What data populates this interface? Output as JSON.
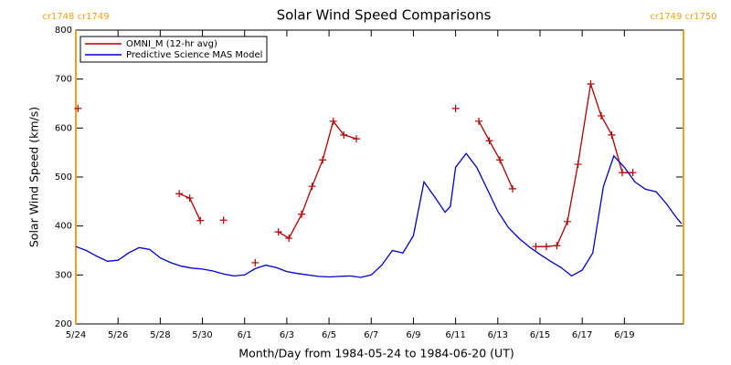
{
  "chart_data": {
    "type": "line",
    "title": "Solar Wind Speed Comparisons",
    "xlabel": "Month/Day from 1984-05-24 to 1984-06-20 (UT)",
    "ylabel": "Solar Wind Speed (km/s)",
    "xlim": [
      0,
      28.8
    ],
    "xticks": [
      {
        "value": 0,
        "label": "5/24"
      },
      {
        "value": 2,
        "label": "5/26"
      },
      {
        "value": 4,
        "label": "5/28"
      },
      {
        "value": 6,
        "label": "5/30"
      },
      {
        "value": 8,
        "label": "6/1"
      },
      {
        "value": 10,
        "label": "6/3"
      },
      {
        "value": 12,
        "label": "6/5"
      },
      {
        "value": 14,
        "label": "6/7"
      },
      {
        "value": 16,
        "label": "6/9"
      },
      {
        "value": 18,
        "label": "6/11"
      },
      {
        "value": 20,
        "label": "6/13"
      },
      {
        "value": 22,
        "label": "6/15"
      },
      {
        "value": 24,
        "label": "6/17"
      },
      {
        "value": 26,
        "label": "6/19"
      }
    ],
    "ylim": [
      200,
      800
    ],
    "yticks": [
      200,
      300,
      400,
      500,
      600,
      700,
      800
    ],
    "legend": "upper left",
    "carrington_boundaries": [
      {
        "x": 0,
        "label": "cr1748 cr1749",
        "color": "#f0a020"
      },
      {
        "x": 28.8,
        "label": "cr1749 cr1750",
        "color": "#f0a020"
      }
    ],
    "series": [
      {
        "name": "OMNI_M (12-hr avg)",
        "color": "#b00000",
        "marker": "plus",
        "x": [
          0.1,
          null,
          4.9,
          5.4,
          5.9,
          null,
          7.0,
          null,
          8.5,
          null,
          9.6,
          10.1,
          10.7,
          11.2,
          11.7,
          12.2,
          12.7,
          13.3,
          null,
          18.0,
          null,
          19.1,
          19.6,
          20.1,
          20.7,
          null,
          21.8,
          22.3,
          22.8,
          23.3,
          23.8,
          24.4,
          24.9,
          25.4,
          25.9,
          26.4
        ],
        "values": [
          640,
          null,
          466,
          457,
          411,
          null,
          412,
          null,
          325,
          null,
          388,
          375,
          424,
          481,
          535,
          614,
          586,
          578,
          null,
          640,
          null,
          614,
          574,
          535,
          476,
          null,
          358,
          358,
          360,
          409,
          526,
          690,
          625,
          586,
          509,
          509
        ]
      },
      {
        "name": "Predictive Science MAS Model",
        "color": "#0000c8",
        "marker": "none",
        "x": [
          0,
          0.5,
          1,
          1.5,
          2,
          2.5,
          3,
          3.5,
          4,
          4.5,
          5,
          5.5,
          6,
          6.5,
          7,
          7.5,
          8,
          8.5,
          9,
          9.5,
          10,
          10.5,
          11,
          11.5,
          12,
          12.5,
          13,
          13.5,
          14,
          14.5,
          15,
          15.5,
          16,
          16.5,
          17,
          17.5,
          17.75,
          18,
          18.5,
          19,
          19.5,
          20,
          20.5,
          21,
          21.5,
          22,
          22.5,
          23,
          23.5,
          24,
          24.5,
          25,
          25.5,
          26,
          26.5,
          27,
          27.5,
          28,
          28.5,
          28.7
        ],
        "values": [
          358,
          350,
          338,
          328,
          330,
          345,
          356,
          352,
          335,
          325,
          318,
          314,
          312,
          308,
          302,
          298,
          300,
          313,
          320,
          315,
          307,
          303,
          300,
          297,
          296,
          297,
          298,
          295,
          300,
          320,
          350,
          345,
          380,
          490,
          460,
          428,
          440,
          520,
          548,
          520,
          475,
          430,
          397,
          375,
          357,
          342,
          328,
          315,
          298,
          310,
          345,
          480,
          543,
          520,
          490,
          475,
          470,
          445,
          415,
          405
        ]
      }
    ]
  }
}
